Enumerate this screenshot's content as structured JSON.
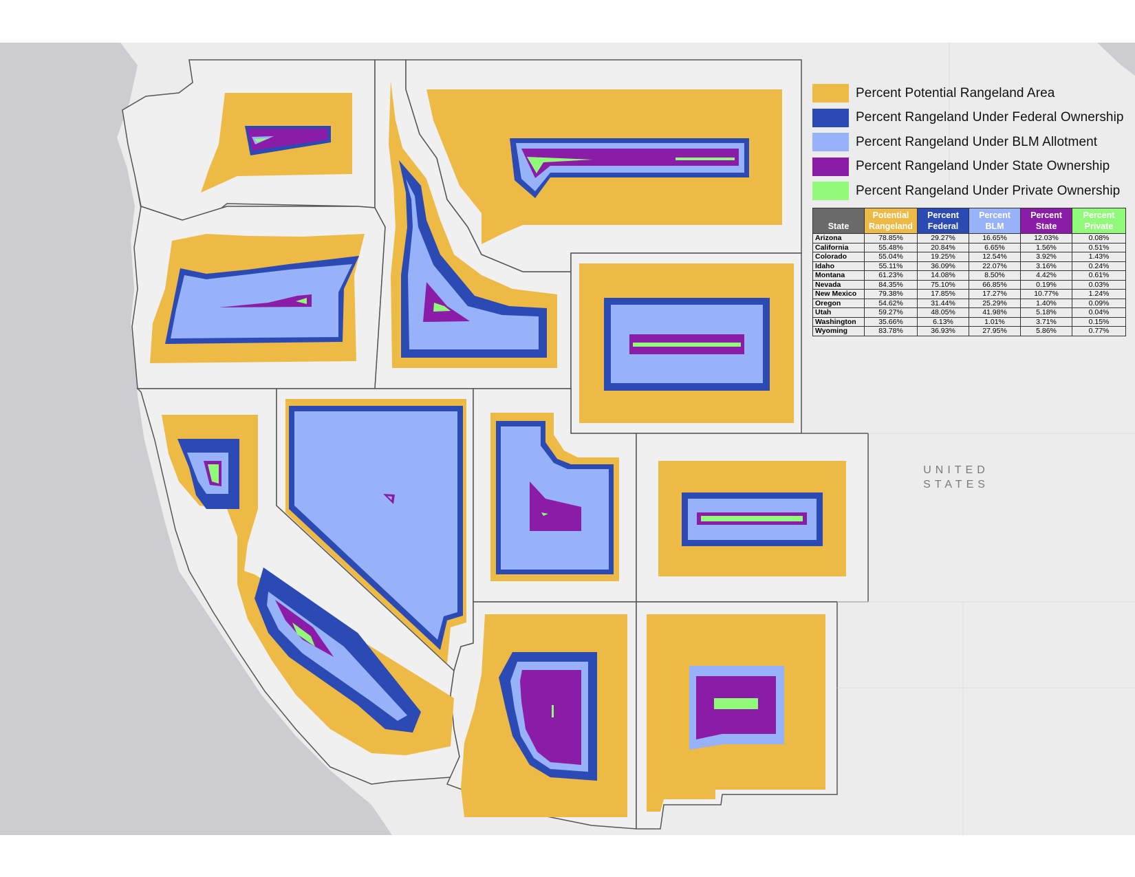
{
  "colors": {
    "rangeland": "#eeba46",
    "federal": "#2b4ab3",
    "blm": "#97b2f8",
    "state": "#8b1ca8",
    "private": "#92fa7a",
    "land": "#ececec",
    "ocean": "#cdcdd1",
    "border": "#555555",
    "header_state": "#6a6a6a"
  },
  "legend": [
    {
      "label": "Percent Potential Rangeland Area",
      "color": "#eeba46"
    },
    {
      "label": "Percent Rangeland Under Federal Ownership",
      "color": "#2b4ab3"
    },
    {
      "label": "Percent Rangeland Under BLM Allotment",
      "color": "#97b2f8"
    },
    {
      "label": "Percent Rangeland Under State Ownership",
      "color": "#8b1ca8"
    },
    {
      "label": "Percent Rangeland Under Private Ownership",
      "color": "#92fa7a"
    }
  ],
  "table": {
    "headers": [
      {
        "line1": "",
        "line2": "State",
        "color": "#6a6a6a"
      },
      {
        "line1": "Potential",
        "line2": "Rangeland",
        "color": "#eeba46"
      },
      {
        "line1": "Percent",
        "line2": "Federal",
        "color": "#2b4ab3"
      },
      {
        "line1": "Percent",
        "line2": "BLM",
        "color": "#97b2f8"
      },
      {
        "line1": "Percent",
        "line2": "State",
        "color": "#8b1ca8"
      },
      {
        "line1": "Percent",
        "line2": "Private",
        "color": "#92fa7a"
      }
    ],
    "rows": [
      [
        "Arizona",
        "78.85%",
        "29.27%",
        "16.65%",
        "12.03%",
        "0.08%"
      ],
      [
        "California",
        "55.48%",
        "20.84%",
        "6.65%",
        "1.56%",
        "0.51%"
      ],
      [
        "Colorado",
        "55.04%",
        "19.25%",
        "12.54%",
        "3.92%",
        "1.43%"
      ],
      [
        "Idaho",
        "55.11%",
        "36.09%",
        "22.07%",
        "3.16%",
        "0.24%"
      ],
      [
        "Montana",
        "61.23%",
        "14.08%",
        "8.50%",
        "4.42%",
        "0.61%"
      ],
      [
        "Nevada",
        "84.35%",
        "75.10%",
        "66.85%",
        "0.19%",
        "0.03%"
      ],
      [
        "New Mexico",
        "79.38%",
        "17.85%",
        "17.27%",
        "10.77%",
        "1.24%"
      ],
      [
        "Oregon",
        "54.62%",
        "31.44%",
        "25.29%",
        "1.40%",
        "0.09%"
      ],
      [
        "Utah",
        "59.27%",
        "48.05%",
        "41.98%",
        "5.18%",
        "0.04%"
      ],
      [
        "Washington",
        "35.66%",
        "6.13%",
        "1.01%",
        "3.71%",
        "0.15%"
      ],
      [
        "Wyoming",
        "83.78%",
        "36.93%",
        "27.95%",
        "5.86%",
        "0.77%"
      ]
    ]
  },
  "map_labels": {
    "country_line1": "UNITED",
    "country_line2": "STATES"
  }
}
